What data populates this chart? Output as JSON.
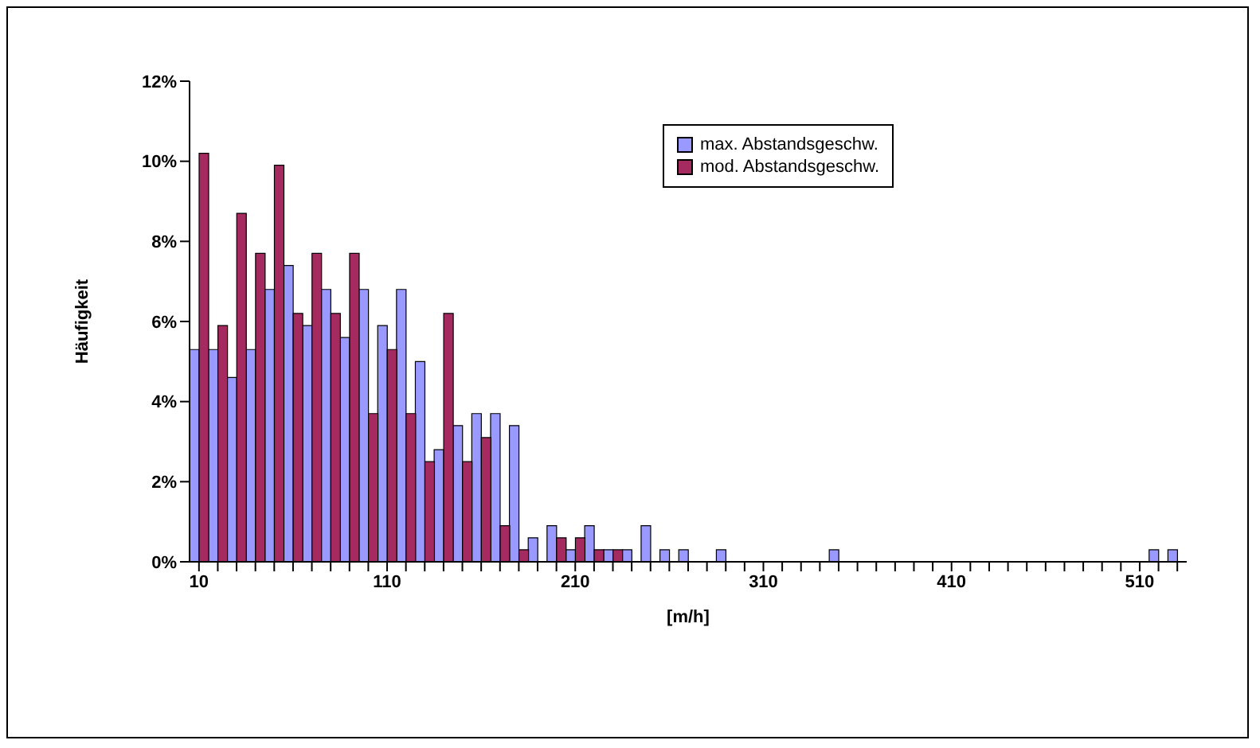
{
  "chart_data": {
    "type": "bar",
    "xlabel": "[m/h]",
    "ylabel": "Häufigkeit",
    "categories": [
      "10",
      null,
      null,
      null,
      null,
      null,
      null,
      null,
      null,
      null,
      "110",
      null,
      null,
      null,
      null,
      null,
      null,
      null,
      null,
      null,
      "210",
      null,
      null,
      null,
      null,
      null,
      null,
      null,
      null,
      null,
      "310",
      null,
      null,
      null,
      null,
      null,
      null,
      null,
      null,
      null,
      "410",
      null,
      null,
      null,
      null,
      null,
      null,
      null,
      null,
      null,
      "510",
      null,
      null
    ],
    "series": [
      {
        "name": "max. Abstandsgeschw.",
        "color": "#9999ff",
        "values": [
          5.3,
          5.3,
          4.6,
          5.3,
          6.8,
          7.4,
          5.9,
          6.8,
          5.6,
          6.8,
          5.9,
          6.8,
          5.0,
          2.8,
          3.4,
          3.7,
          3.7,
          3.4,
          0.6,
          0.9,
          0.3,
          0.9,
          0.3,
          0.3,
          0.9,
          0.3,
          0.3,
          0,
          0.3,
          0,
          0,
          0,
          0,
          0,
          0.3,
          0,
          0,
          0,
          0,
          0,
          0,
          0,
          0,
          0,
          0,
          0,
          0,
          0,
          0,
          0,
          0,
          0.3,
          0.3
        ]
      },
      {
        "name": "mod. Abstandsgeschw.",
        "color": "#a52a5f",
        "values": [
          10.2,
          5.9,
          8.7,
          7.7,
          9.9,
          6.2,
          7.7,
          6.2,
          7.7,
          3.7,
          5.3,
          3.7,
          2.5,
          6.2,
          2.5,
          3.1,
          0.9,
          0.3,
          0,
          0.6,
          0.6,
          0.3,
          0.3,
          0,
          0,
          0,
          0,
          0,
          0,
          0,
          0,
          0,
          0,
          0,
          0,
          0,
          0,
          0,
          0,
          0,
          0,
          0,
          0,
          0,
          0,
          0,
          0,
          0,
          0,
          0,
          0,
          0,
          0
        ]
      }
    ],
    "ylim": [
      0,
      12
    ],
    "yticks": [
      {
        "value": 0,
        "label": "0%"
      },
      {
        "value": 2,
        "label": "2%"
      },
      {
        "value": 4,
        "label": "4%"
      },
      {
        "value": 6,
        "label": "6%"
      },
      {
        "value": 8,
        "label": "8%"
      },
      {
        "value": 10,
        "label": "10%"
      },
      {
        "value": 12,
        "label": "12%"
      }
    ],
    "legend": "top right",
    "grid": false
  }
}
